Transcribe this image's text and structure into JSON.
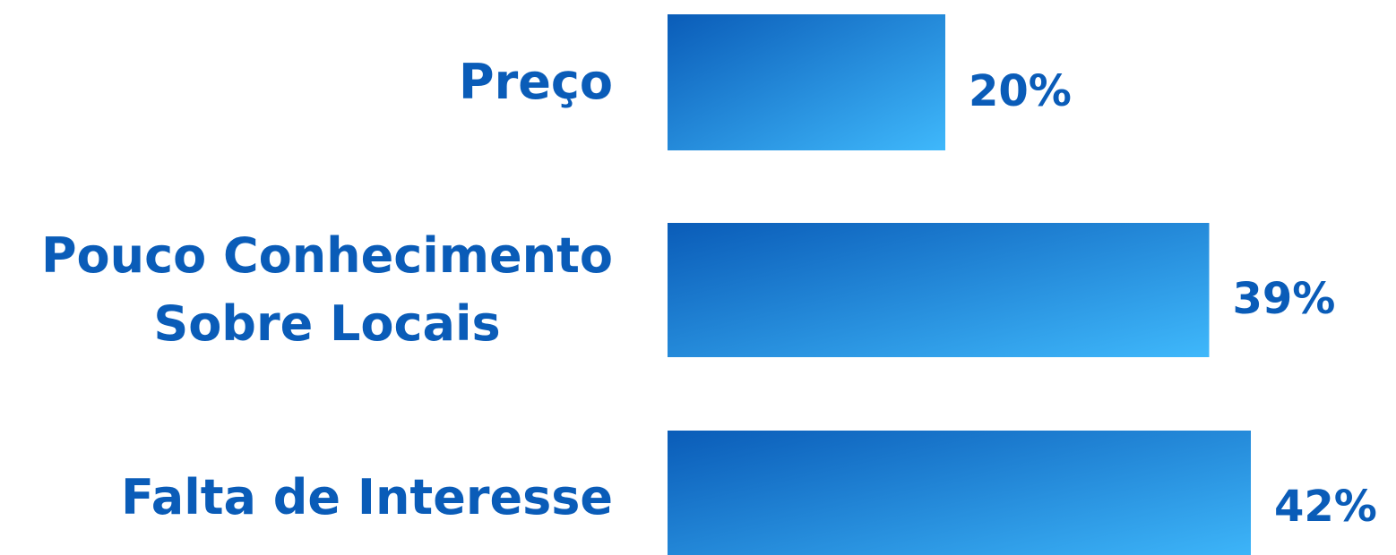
{
  "chart_data": {
    "type": "bar",
    "orientation": "horizontal",
    "categories": [
      [
        "Preço"
      ],
      [
        "Pouco Conhecimento",
        "Sobre Locais"
      ],
      [
        "Falta de Interesse"
      ]
    ],
    "values": [
      20,
      39,
      42
    ],
    "value_labels": [
      "20%",
      "39%",
      "42%"
    ],
    "unit": "%",
    "xlim": [
      0,
      100
    ],
    "grid": false,
    "legend": "none"
  },
  "colors": {
    "text": "#0a5cb8",
    "bar_start": "#0a5cb8",
    "bar_end": "#3fb8fb",
    "background": "#ffffff"
  }
}
